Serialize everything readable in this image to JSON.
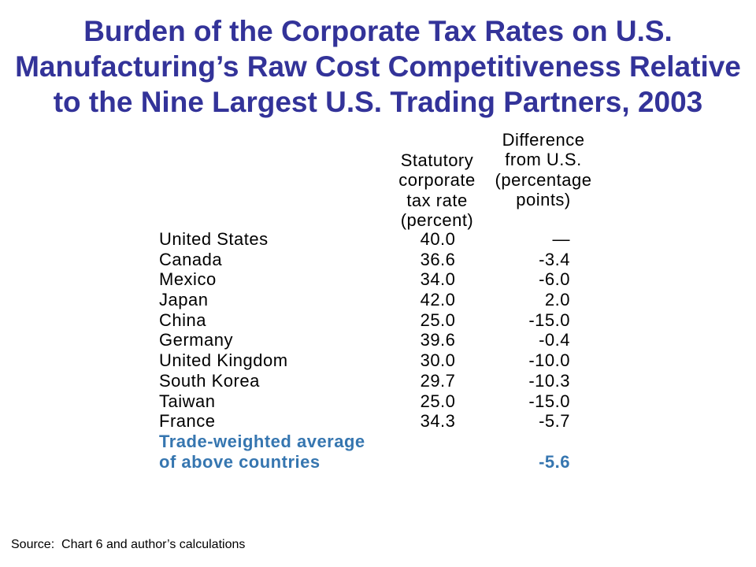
{
  "slide": {
    "title_lines": [
      "Burden of the Corporate Tax Rates on U.S.",
      "Manufacturing’s Raw Cost Competitiveness Relative",
      "to the Nine Largest U.S. Trading Partners, 2003"
    ],
    "source": "Source:  Chart 6 and author’s calculations"
  },
  "table": {
    "columns": [
      {
        "header_lines": [
          "Statutory",
          "corporate",
          "tax rate",
          "(percent)"
        ]
      },
      {
        "header_lines": [
          "Difference",
          "from U.S.",
          "(percentage",
          "points)"
        ]
      }
    ],
    "rows": [
      {
        "country": "United States",
        "rate": "40.0",
        "difference": "—"
      },
      {
        "country": "Canada",
        "rate": "36.6",
        "difference": "-3.4"
      },
      {
        "country": "Mexico",
        "rate": "34.0",
        "difference": "-6.0"
      },
      {
        "country": "Japan",
        "rate": "42.0",
        "difference": "2.0"
      },
      {
        "country": "China",
        "rate": "25.0",
        "difference": "-15.0"
      },
      {
        "country": "Germany",
        "rate": "39.6",
        "difference": "-0.4"
      },
      {
        "country": "United Kingdom",
        "rate": "30.0",
        "difference": "-10.0"
      },
      {
        "country": "South Korea",
        "rate": "29.7",
        "difference": "-10.3"
      },
      {
        "country": "Taiwan",
        "rate": "25.0",
        "difference": "-15.0"
      },
      {
        "country": "France",
        "rate": "34.3",
        "difference": "-5.7"
      }
    ],
    "summary": {
      "label_lines": [
        "Trade-weighted average",
        "of above countries"
      ],
      "difference": "-5.6"
    }
  },
  "colors": {
    "title": "#333399",
    "text": "#000000",
    "summary": "#3676B0",
    "background": "#FFFFFF"
  }
}
